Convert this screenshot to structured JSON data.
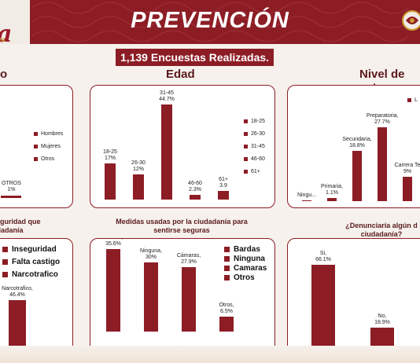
{
  "header": {
    "title": "PREVENCIÓN",
    "logo_text": "a",
    "logo_sub": "za",
    "subtitle": "1,139 Encuestas Realizadas."
  },
  "columns": {
    "left": "o",
    "middle": "Edad",
    "right": "Nivel de est"
  },
  "panels": {
    "bl_title": "seguridad que\nudadanía",
    "bm_title": "Medidas usadas por la ciudadanía para\nsentirse seguras",
    "br_title": "¿Denunciaría algún d\nciudadanía?"
  },
  "chart_data": [
    {
      "id": "genero",
      "type": "bar",
      "title": "",
      "categories": [
        "Otros"
      ],
      "values": [
        1
      ],
      "labels": [
        "OTROS\n1%"
      ],
      "legend": [
        "Hombres",
        "Mujeres",
        "Otros"
      ]
    },
    {
      "id": "edad",
      "type": "bar",
      "title": "Edad",
      "categories": [
        "18-25",
        "26-30",
        "31-45",
        "46-60",
        "61+"
      ],
      "values": [
        17,
        12,
        44.7,
        2.3,
        3.9
      ],
      "labels": [
        "18-25\n17%",
        "26-30\n12%",
        "31-45\n44.7%",
        "46-60\n2.3%",
        "61+\n3.9"
      ],
      "legend": [
        "18-25",
        "26-30",
        "31-45",
        "46-60",
        "61+"
      ]
    },
    {
      "id": "nivel_estudios",
      "type": "bar",
      "title": "Nivel de est",
      "categories": [
        "Ninguna",
        "Primaria",
        "Secundaria",
        "Preparatoria",
        "Carrera Técnica"
      ],
      "values": [
        0.3,
        1.1,
        18.8,
        27.7,
        9
      ],
      "labels": [
        "Ningu...",
        "Primaria,\n1.1%",
        "Secundaria,\n18.8%",
        "Preparatoria,\n27.7%",
        "Carrera Te\n9%"
      ],
      "legend": [
        "L"
      ]
    },
    {
      "id": "inseguridad",
      "type": "bar",
      "title": "seguridad que udadanía",
      "categories": [
        "Narcotrafico"
      ],
      "values": [
        46.4
      ],
      "labels": [
        "Narcotrafico,\n46.4%"
      ],
      "legend": [
        "Inseguridad",
        "Falta castigo",
        "Narcotrafico"
      ]
    },
    {
      "id": "medidas",
      "type": "bar",
      "title": "Medidas usadas por la ciudadanía para sentirse seguras",
      "categories": [
        "Bardas",
        "Ninguna",
        "Cámaras",
        "Otros"
      ],
      "values": [
        35.6,
        30,
        27.9,
        6.5
      ],
      "labels": [
        "Bardas,\n35.6%",
        "Ninguna,\n30%",
        "Cámaras,\n27.9%",
        "Otros,\n6.5%"
      ],
      "legend": [
        "Bardas",
        "Ninguna",
        "Camaras",
        "Otros"
      ]
    },
    {
      "id": "denuncia",
      "type": "bar",
      "title": "¿Denunciaría algún d ciudadanía?",
      "categories": [
        "Si",
        "No"
      ],
      "values": [
        66.1,
        18.9
      ],
      "labels": [
        "Si,\n66.1%",
        "No,\n18.9%"
      ],
      "legend": []
    }
  ],
  "colors": {
    "brand": "#8c1d25",
    "background": "#f6f1ec"
  }
}
